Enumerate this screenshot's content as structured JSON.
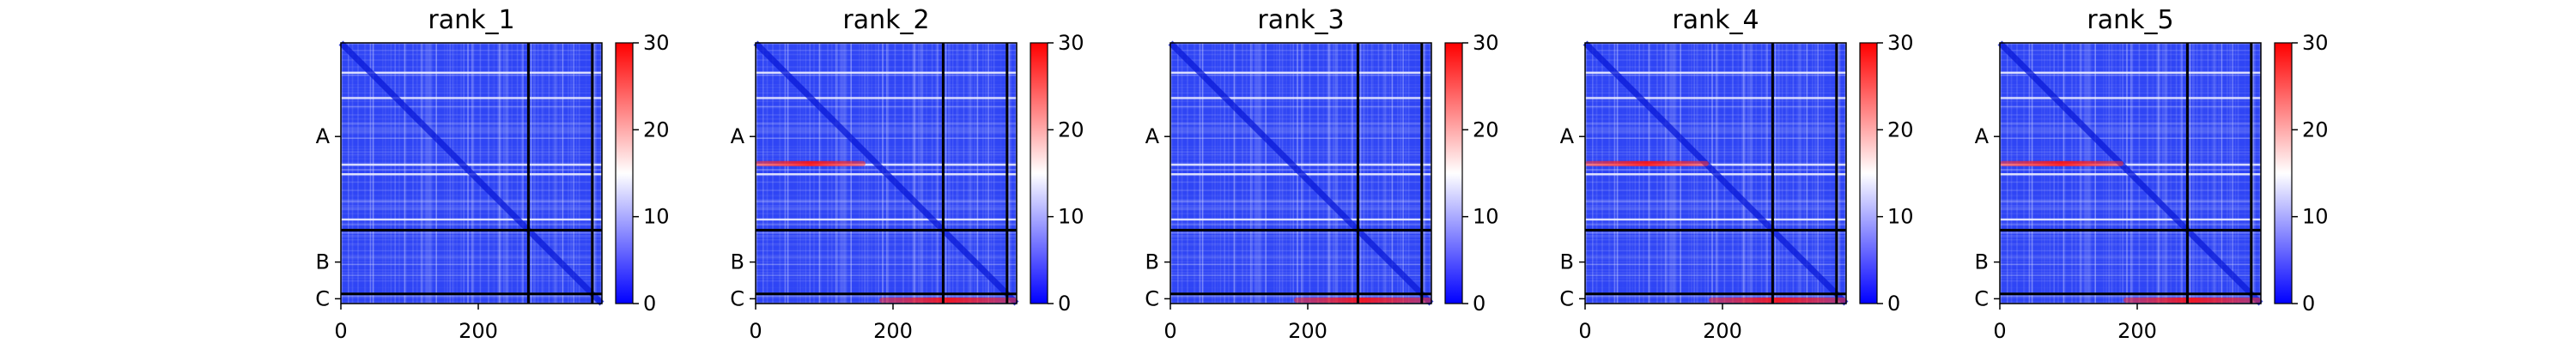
{
  "chart_data": {
    "type": "heatmap",
    "colormap": "bwr",
    "colors": {
      "low": "#0000ff",
      "mid": "#ffffff",
      "high": "#ff0000",
      "frame": "#000000"
    },
    "xlim": [
      0,
      380
    ],
    "ylim": [
      0,
      380
    ],
    "x_ticks": [
      0,
      200
    ],
    "chain_boundaries": [
      273,
      366
    ],
    "chain_labels": [
      {
        "label": "A",
        "position": 136.5
      },
      {
        "label": "B",
        "position": 319.5
      },
      {
        "label": "C",
        "position": 373
      }
    ],
    "colorbar": {
      "min": 0,
      "max": 30,
      "ticks": [
        0,
        10,
        20,
        30
      ]
    },
    "grid": false,
    "panels": [
      {
        "title": "rank_1",
        "hot_bands": []
      },
      {
        "title": "rank_2",
        "hot_bands": [
          {
            "row": 176,
            "from": 0,
            "to": 160,
            "value": 22
          },
          {
            "row": 375,
            "from": 180,
            "to": 380,
            "value": 24
          }
        ]
      },
      {
        "title": "rank_3",
        "hot_bands": [
          {
            "row": 375,
            "from": 180,
            "to": 380,
            "value": 22
          }
        ]
      },
      {
        "title": "rank_4",
        "hot_bands": [
          {
            "row": 176,
            "from": 0,
            "to": 180,
            "value": 27
          },
          {
            "row": 375,
            "from": 180,
            "to": 380,
            "value": 25
          }
        ]
      },
      {
        "title": "rank_5",
        "hot_bands": [
          {
            "row": 176,
            "from": 0,
            "to": 180,
            "value": 25
          },
          {
            "row": 375,
            "from": 180,
            "to": 380,
            "value": 24
          }
        ]
      }
    ]
  }
}
